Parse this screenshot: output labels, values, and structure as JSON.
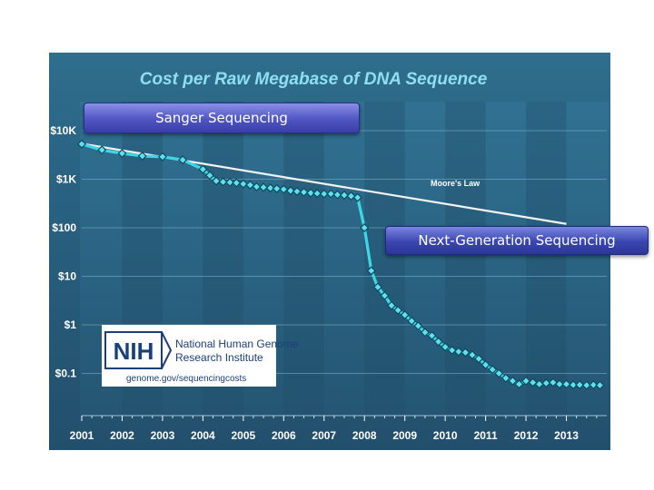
{
  "chart_data": {
    "type": "line",
    "title": "Cost per Raw Megabase of DNA Sequence",
    "y_scale": "log",
    "ylim": [
      0.05,
      10000
    ],
    "y_ticks": [
      {
        "value": 10000,
        "label": "$10K"
      },
      {
        "value": 1000,
        "label": "$1K"
      },
      {
        "value": 100,
        "label": "$100"
      },
      {
        "value": 10,
        "label": "$10"
      },
      {
        "value": 1,
        "label": "$1"
      },
      {
        "value": 0.1,
        "label": "$0.1"
      }
    ],
    "x_ticks": [
      "2001",
      "2002",
      "2003",
      "2004",
      "2005",
      "2006",
      "2007",
      "2008",
      "2009",
      "2010",
      "2011",
      "2012",
      "2013"
    ],
    "xlim": [
      2001.0,
      2014.0
    ],
    "series": [
      {
        "name": "",
        "color": "#3fd6e6",
        "marker": "diamond",
        "x": [
          2001.0,
          2001.5,
          2002.0,
          2002.5,
          2003.0,
          2003.5,
          2004.0,
          2004.17,
          2004.33,
          2004.5,
          2004.67,
          2004.83,
          2005.0,
          2005.17,
          2005.33,
          2005.5,
          2005.67,
          2005.83,
          2006.0,
          2006.17,
          2006.33,
          2006.5,
          2006.67,
          2006.83,
          2007.0,
          2007.17,
          2007.33,
          2007.5,
          2007.67,
          2007.83,
          2008.0,
          2008.17,
          2008.33,
          2008.5,
          2008.67,
          2008.83,
          2009.0,
          2009.17,
          2009.33,
          2009.5,
          2009.67,
          2009.83,
          2010.0,
          2010.17,
          2010.33,
          2010.5,
          2010.67,
          2010.83,
          2011.0,
          2011.17,
          2011.33,
          2011.5,
          2011.67,
          2011.83,
          2012.0,
          2012.17,
          2012.33,
          2012.5,
          2012.67,
          2012.83,
          2013.0,
          2013.17,
          2013.33,
          2013.5,
          2013.67,
          2013.83
        ],
        "y": [
          5300,
          4000,
          3400,
          3000,
          2900,
          2500,
          1600,
          1200,
          920,
          880,
          860,
          840,
          800,
          760,
          700,
          680,
          660,
          640,
          620,
          580,
          560,
          540,
          520,
          510,
          500,
          500,
          480,
          470,
          450,
          420,
          100,
          13,
          6,
          4,
          2.5,
          2,
          1.6,
          1.2,
          0.95,
          0.7,
          0.6,
          0.45,
          0.35,
          0.3,
          0.28,
          0.27,
          0.24,
          0.2,
          0.15,
          0.12,
          0.1,
          0.08,
          0.07,
          0.06,
          0.07,
          0.065,
          0.06,
          0.063,
          0.065,
          0.06,
          0.06,
          0.058,
          0.058,
          0.057,
          0.058,
          0.057
        ]
      },
      {
        "name": "",
        "color": "#f2f4f4",
        "x": [
          2001.0,
          2013.0
        ],
        "y": [
          5400,
          120
        ]
      }
    ],
    "annotations": [
      {
        "text": "Moore's Law"
      }
    ]
  },
  "callouts": {
    "sanger": "Sanger Sequencing",
    "ngs": "Next-Generation Sequencing"
  },
  "nih": {
    "logo_text": "NIH",
    "line1": "National Human Genome",
    "line2": "Research Institute",
    "url": "genome.gov/sequencingcosts"
  }
}
